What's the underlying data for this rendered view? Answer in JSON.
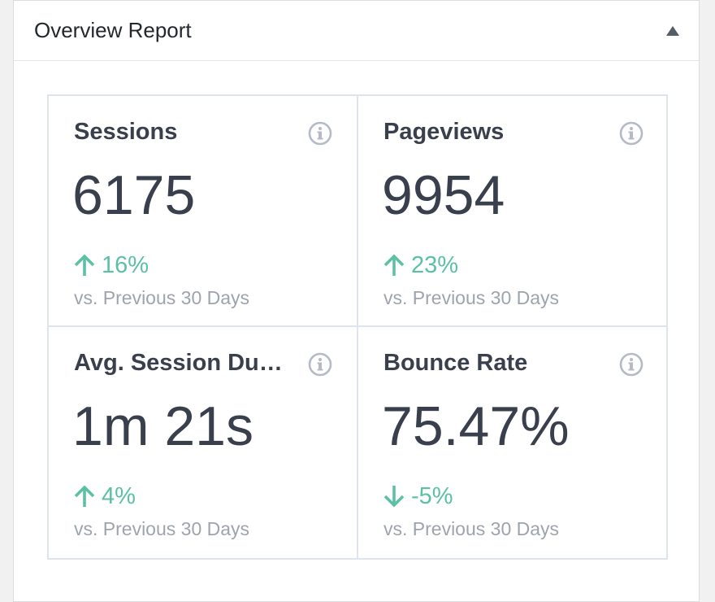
{
  "panel": {
    "title": "Overview Report",
    "toggle_icon": "triangle-up-icon"
  },
  "colors": {
    "accent_positive": "#5cc0a5",
    "text_dark": "#393f4c",
    "text_muted": "#9ea4ae",
    "border": "#dfe4ea",
    "info_icon": "#b4bbc6"
  },
  "metrics": [
    {
      "title": "Sessions",
      "value": "6175",
      "change": "16%",
      "direction": "up",
      "compare": "vs. Previous 30 Days",
      "icon": "info-icon"
    },
    {
      "title": "Pageviews",
      "value": "9954",
      "change": "23%",
      "direction": "up",
      "compare": "vs. Previous 30 Days",
      "icon": "info-icon"
    },
    {
      "title": "Avg. Session Du…",
      "value": "1m 21s",
      "change": "4%",
      "direction": "up",
      "compare": "vs. Previous 30 Days",
      "icon": "info-icon"
    },
    {
      "title": "Bounce Rate",
      "value": "75.47%",
      "change": "-5%",
      "direction": "down",
      "compare": "vs. Previous 30 Days",
      "icon": "info-icon"
    }
  ]
}
